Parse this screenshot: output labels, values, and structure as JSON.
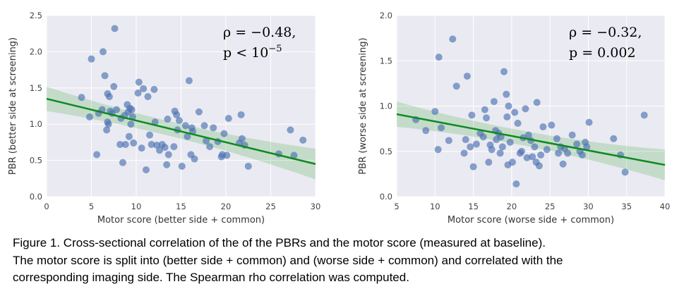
{
  "chart_data": [
    {
      "type": "scatter",
      "xlabel": "Motor score (better side + common)",
      "ylabel": "PBR (better side at screening)",
      "xlim": [
        0,
        30
      ],
      "ylim": [
        0,
        2.5
      ],
      "xticks": [
        "0",
        "5",
        "10",
        "15",
        "20",
        "25",
        "30"
      ],
      "yticks": [
        "0.0",
        "0.5",
        "1.0",
        "1.5",
        "2.0",
        "2.5"
      ],
      "annotation": {
        "rho": "ρ = −0.48,",
        "p": "p < 10−5"
      },
      "grid": true,
      "regression": {
        "x": [
          0,
          30
        ],
        "y": [
          1.35,
          0.45
        ]
      },
      "points": [
        [
          3.9,
          1.37
        ],
        [
          4.8,
          1.1
        ],
        [
          5,
          1.9
        ],
        [
          5.6,
          0.58
        ],
        [
          5.8,
          1.15
        ],
        [
          6.2,
          1.2
        ],
        [
          6.3,
          2.0
        ],
        [
          6.5,
          1.67
        ],
        [
          6.7,
          0.92
        ],
        [
          6.8,
          1.03
        ],
        [
          6.9,
          1.0
        ],
        [
          6.8,
          1.42
        ],
        [
          7,
          1.38
        ],
        [
          7.1,
          1.18
        ],
        [
          7.3,
          1.15
        ],
        [
          7.6,
          2.32
        ],
        [
          7.5,
          1.52
        ],
        [
          7.8,
          1.2
        ],
        [
          8.2,
          0.72
        ],
        [
          8.3,
          1.08
        ],
        [
          8.5,
          0.47
        ],
        [
          8.7,
          1.12
        ],
        [
          8.8,
          0.72
        ],
        [
          9,
          1.27
        ],
        [
          9.1,
          1.17
        ],
        [
          9.2,
          0.83
        ],
        [
          9.3,
          1.22
        ],
        [
          9.4,
          1.0
        ],
        [
          9.5,
          1.2
        ],
        [
          9.6,
          1.1
        ],
        [
          9.7,
          0.74
        ],
        [
          10.2,
          1.43
        ],
        [
          10.3,
          1.58
        ],
        [
          10.6,
          0.67
        ],
        [
          10.8,
          1.49
        ],
        [
          11.1,
          0.37
        ],
        [
          11.3,
          1.38
        ],
        [
          11.5,
          0.85
        ],
        [
          11.7,
          0.72
        ],
        [
          12,
          1.48
        ],
        [
          12.1,
          1.03
        ],
        [
          12.3,
          0.71
        ],
        [
          12.6,
          0.64
        ],
        [
          12.9,
          0.72
        ],
        [
          13.2,
          0.68
        ],
        [
          13.4,
          0.44
        ],
        [
          13.5,
          1.07
        ],
        [
          13.6,
          0.58
        ],
        [
          14.2,
          0.69
        ],
        [
          14.3,
          1.18
        ],
        [
          14.5,
          1.13
        ],
        [
          14.6,
          0.92
        ],
        [
          14.8,
          1.05
        ],
        [
          15.1,
          0.42
        ],
        [
          15.5,
          0.98
        ],
        [
          15.7,
          0.83
        ],
        [
          15.9,
          1.6
        ],
        [
          16.1,
          0.58
        ],
        [
          16.2,
          0.95
        ],
        [
          16.3,
          0.9
        ],
        [
          16.5,
          0.52
        ],
        [
          17,
          1.17
        ],
        [
          17.6,
          0.98
        ],
        [
          17.8,
          0.77
        ],
        [
          18.2,
          0.69
        ],
        [
          18.6,
          0.95
        ],
        [
          19.1,
          0.76
        ],
        [
          19.5,
          0.55
        ],
        [
          19.6,
          0.58
        ],
        [
          19.8,
          0.87
        ],
        [
          20.1,
          0.57
        ],
        [
          20.3,
          1.08
        ],
        [
          21.5,
          0.74
        ],
        [
          21.7,
          1.13
        ],
        [
          21.8,
          0.8
        ],
        [
          22.1,
          0.71
        ],
        [
          22.5,
          0.42
        ],
        [
          25.9,
          0.59
        ],
        [
          27.2,
          0.92
        ],
        [
          27.6,
          0.57
        ],
        [
          28.6,
          0.78
        ]
      ]
    },
    {
      "type": "scatter",
      "xlabel": "Motor score (worse side + common)",
      "ylabel": "PBR (worse side at screening)",
      "xlim": [
        5,
        40
      ],
      "ylim": [
        0,
        2.0
      ],
      "xticks": [
        "5",
        "10",
        "15",
        "20",
        "25",
        "30",
        "35",
        "40"
      ],
      "yticks": [
        "0.0",
        "0.5",
        "1.0",
        "1.5",
        "2.0"
      ],
      "annotation": {
        "rho": "ρ = −0.32,",
        "p": "p = 0.002"
      },
      "grid": true,
      "regression": {
        "x": [
          5,
          40
        ],
        "y": [
          0.91,
          0.35
        ]
      },
      "points": [
        [
          7.5,
          0.85
        ],
        [
          8.8,
          0.73
        ],
        [
          10,
          0.94
        ],
        [
          10.4,
          0.52
        ],
        [
          10.5,
          1.54
        ],
        [
          10.8,
          0.76
        ],
        [
          11.8,
          0.62
        ],
        [
          12.3,
          1.74
        ],
        [
          12.8,
          1.22
        ],
        [
          13.8,
          0.48
        ],
        [
          14,
          0.63
        ],
        [
          14.2,
          1.33
        ],
        [
          14.6,
          0.55
        ],
        [
          14.8,
          0.9
        ],
        [
          15,
          0.33
        ],
        [
          15.4,
          0.58
        ],
        [
          15.9,
          0.7
        ],
        [
          16.3,
          0.66
        ],
        [
          16.5,
          0.96
        ],
        [
          16.7,
          0.87
        ],
        [
          17,
          0.38
        ],
        [
          17.2,
          0.57
        ],
        [
          17.4,
          0.52
        ],
        [
          17.7,
          1.05
        ],
        [
          17.9,
          0.73
        ],
        [
          18,
          0.63
        ],
        [
          18.3,
          0.7
        ],
        [
          18.5,
          0.48
        ],
        [
          18.6,
          0.66
        ],
        [
          18.8,
          0.55
        ],
        [
          19,
          1.38
        ],
        [
          19.3,
          1.13
        ],
        [
          19.4,
          0.88
        ],
        [
          19.5,
          0.35
        ],
        [
          19.6,
          1.0
        ],
        [
          19.8,
          0.6
        ],
        [
          20.1,
          0.38
        ],
        [
          20.4,
          0.93
        ],
        [
          20.6,
          0.14
        ],
        [
          20.8,
          0.81
        ],
        [
          21.1,
          0.48
        ],
        [
          21.3,
          0.5
        ],
        [
          21.5,
          0.65
        ],
        [
          21.8,
          0.97
        ],
        [
          22,
          0.43
        ],
        [
          22.2,
          0.68
        ],
        [
          22.5,
          0.62
        ],
        [
          22.7,
          0.44
        ],
        [
          23,
          0.55
        ],
        [
          23.2,
          0.38
        ],
        [
          23.3,
          1.04
        ],
        [
          23.6,
          0.34
        ],
        [
          23.8,
          0.46
        ],
        [
          24.1,
          0.77
        ],
        [
          24.6,
          0.52
        ],
        [
          25.2,
          0.79
        ],
        [
          25.9,
          0.64
        ],
        [
          26.1,
          0.48
        ],
        [
          26.4,
          0.55
        ],
        [
          26.7,
          0.36
        ],
        [
          26.9,
          0.53
        ],
        [
          27.3,
          0.48
        ],
        [
          27.9,
          0.68
        ],
        [
          28.5,
          0.58
        ],
        [
          28.9,
          0.5
        ],
        [
          29.2,
          0.46
        ],
        [
          29.6,
          0.6
        ],
        [
          29.8,
          0.55
        ],
        [
          30.1,
          0.82
        ],
        [
          33.3,
          0.64
        ],
        [
          34.2,
          0.46
        ],
        [
          34.8,
          0.27
        ],
        [
          37.3,
          0.9
        ]
      ]
    }
  ],
  "caption": {
    "line1": "Figure 1. Cross-sectional correlation of the of the PBRs and the motor score (measured at baseline).",
    "line2": "The motor score is split into (better side + common) and (worse side + common) and correlated with the",
    "line3": "corresponding imaging side. The Spearman rho correlation was computed."
  }
}
